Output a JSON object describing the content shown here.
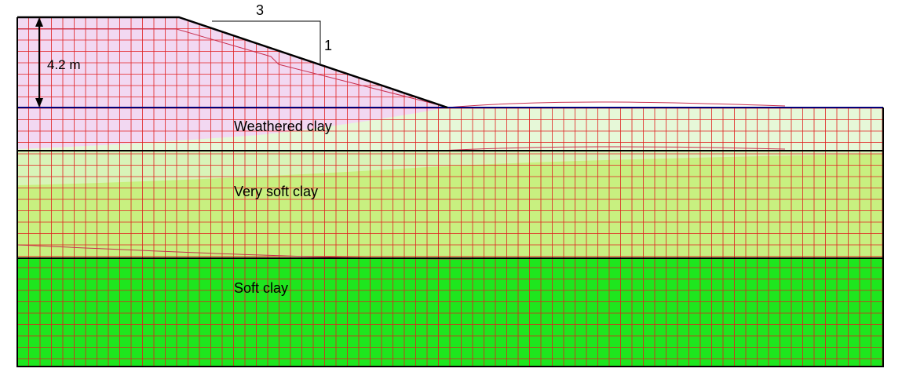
{
  "slope_ratio": {
    "horizontal": "3",
    "vertical": "1"
  },
  "dimension": {
    "label": "4.2 m"
  },
  "layers": [
    {
      "name": "Weathered clay",
      "color": "#e6f8d8"
    },
    {
      "name": "Very soft clay",
      "color": "#c8f080"
    },
    {
      "name": "Soft clay",
      "color": "#1ee61e"
    }
  ],
  "colors": {
    "embankment": "#f2d8f2",
    "mesh": "#e02020",
    "ground_surface": "#00007a",
    "outline": "#000000"
  }
}
